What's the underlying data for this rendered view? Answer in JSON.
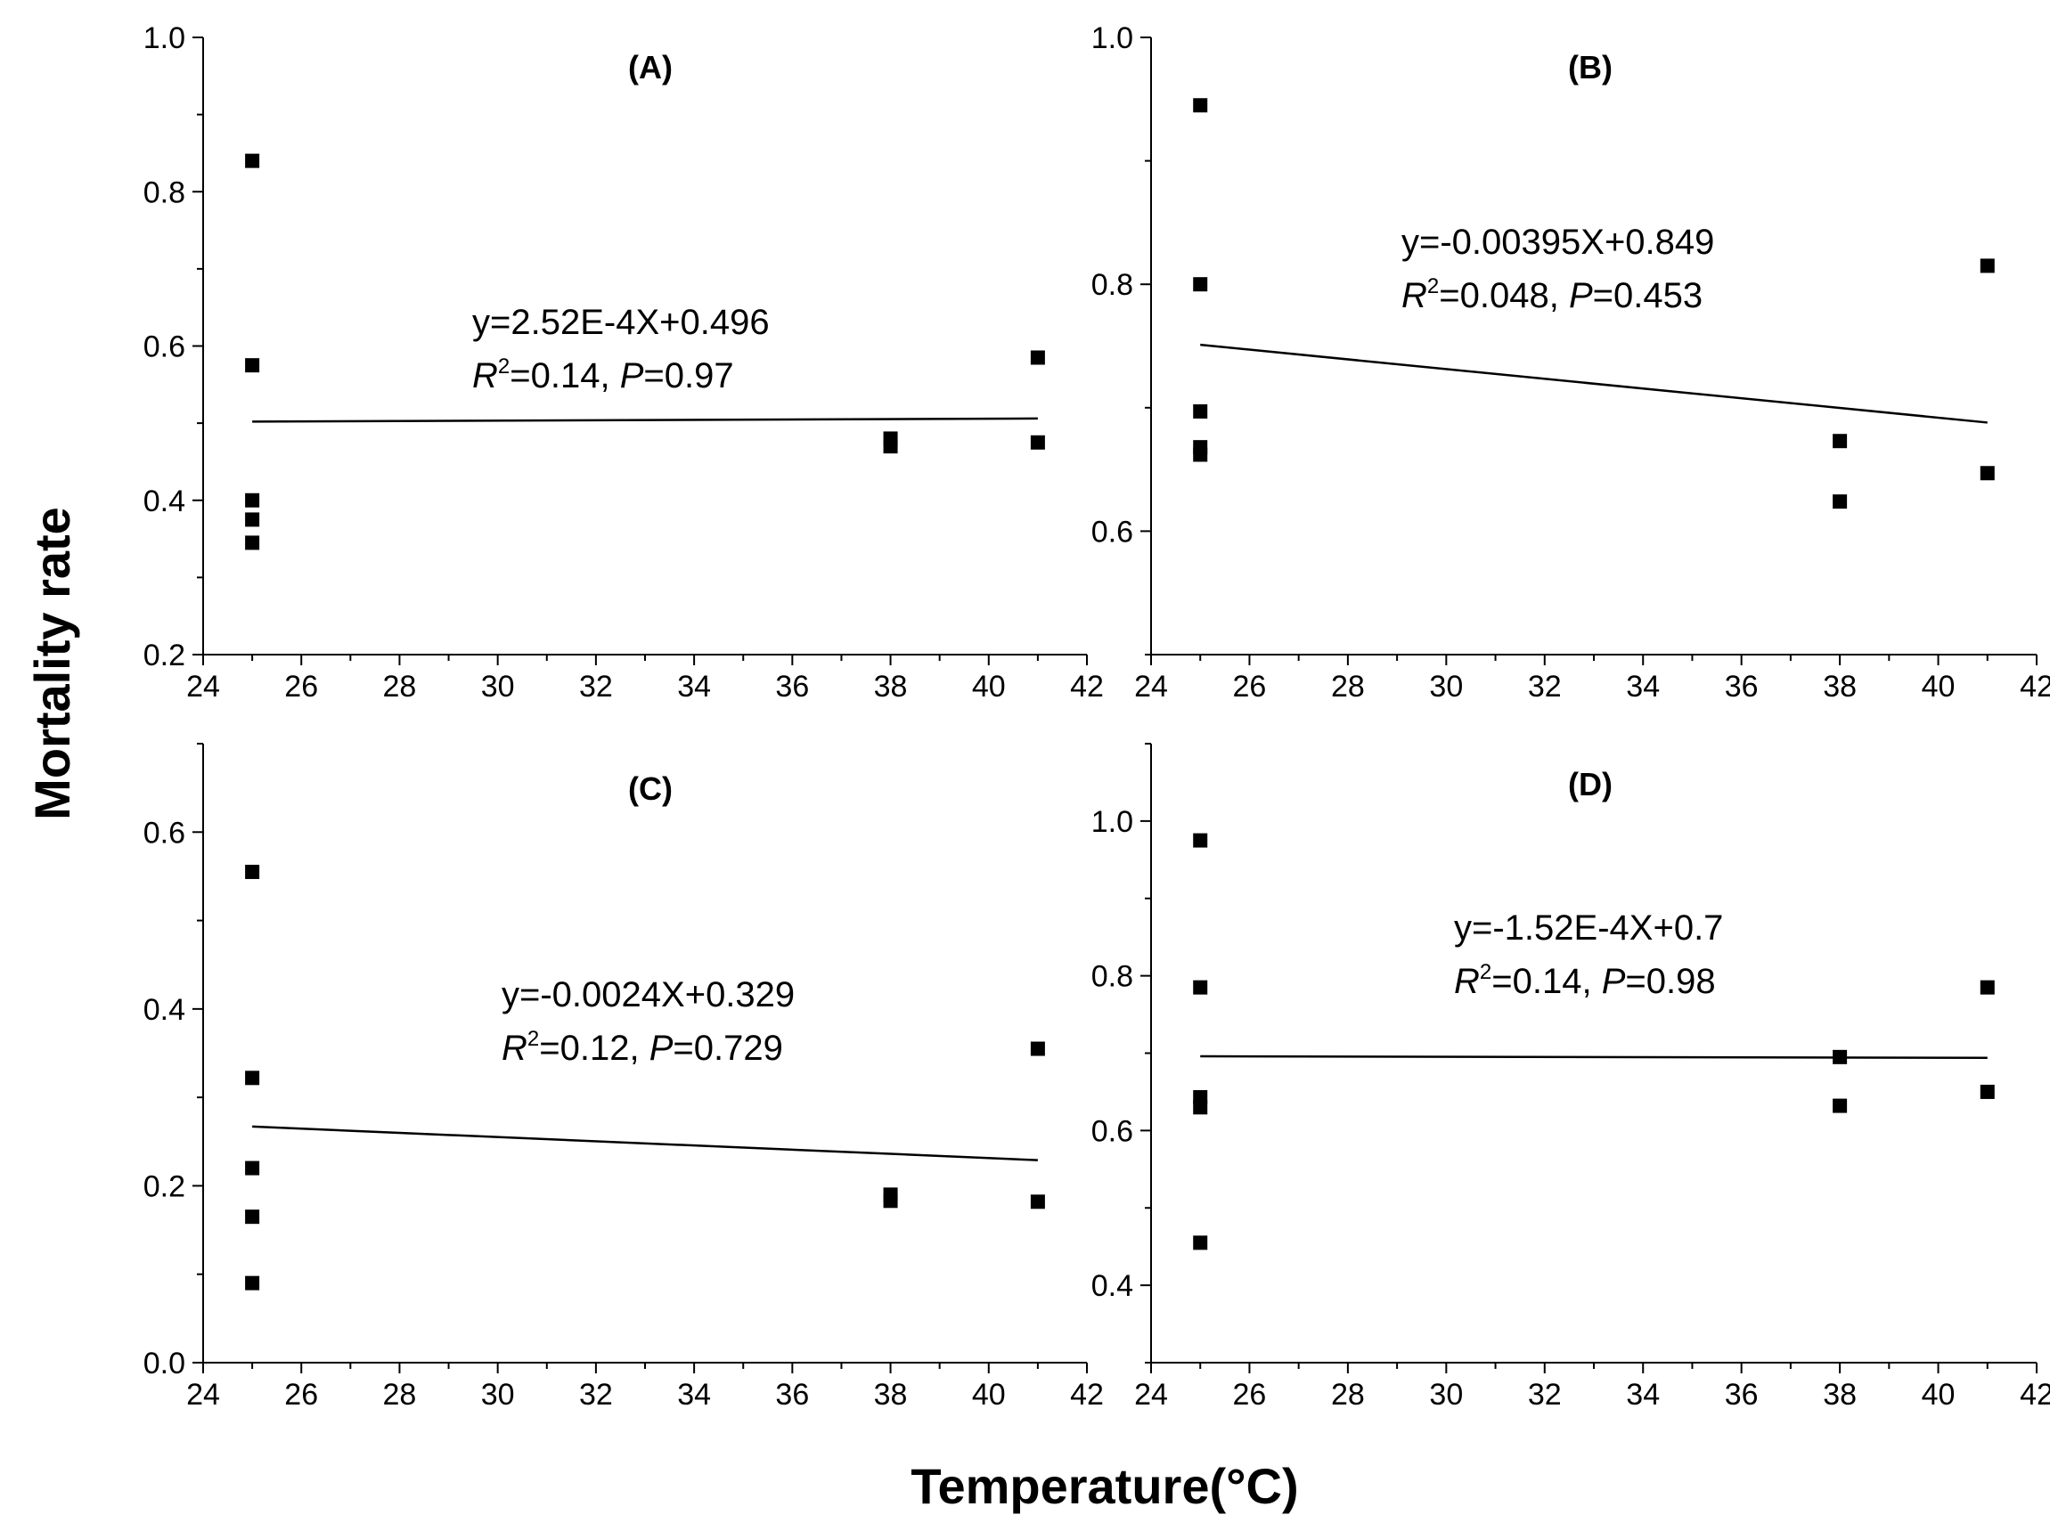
{
  "figure": {
    "ylabel": "Mortality rate",
    "xlabel": "Temperature(°C)"
  },
  "chart_data": [
    {
      "type": "scatter",
      "title": "(A)",
      "xlabel": "Temperature(°C)",
      "ylabel": "Mortality rate",
      "xlim": [
        24,
        42
      ],
      "ylim": [
        0.2,
        1.0
      ],
      "xticks": [
        24,
        26,
        28,
        30,
        32,
        34,
        36,
        38,
        40,
        42
      ],
      "yticks": [
        0.2,
        0.4,
        0.6,
        0.8,
        1.0
      ],
      "ytick_labels": [
        "0.2",
        "0.4",
        "0.6",
        "0.8",
        "1.0"
      ],
      "points": [
        {
          "x": 25,
          "y": 0.84
        },
        {
          "x": 25,
          "y": 0.575
        },
        {
          "x": 25,
          "y": 0.4
        },
        {
          "x": 25,
          "y": 0.375
        },
        {
          "x": 25,
          "y": 0.345
        },
        {
          "x": 38,
          "y": 0.48
        },
        {
          "x": 38,
          "y": 0.47
        },
        {
          "x": 41,
          "y": 0.585
        },
        {
          "x": 41,
          "y": 0.475
        }
      ],
      "fit": {
        "x0": 25,
        "y0": 0.502,
        "x1": 41,
        "y1": 0.506
      },
      "equation": "y=2.52E-4X+0.496",
      "stats": {
        "r2_label": "R",
        "r2_sup": "2",
        "r2_value": "=0.14, ",
        "p_label": "P",
        "p_value": "=0.97"
      }
    },
    {
      "type": "scatter",
      "title": "(B)",
      "xlabel": "Temperature(°C)",
      "ylabel": "Mortality rate",
      "xlim": [
        24,
        42
      ],
      "ylim": [
        0.5,
        1.0
      ],
      "xticks": [
        24,
        26,
        28,
        30,
        32,
        34,
        36,
        38,
        40,
        42
      ],
      "yticks": [
        0.6,
        0.8,
        1.0
      ],
      "ytick_labels": [
        "0.6",
        "0.8",
        "1.0"
      ],
      "minor_yticks": [
        0.5,
        0.7,
        0.9
      ],
      "points": [
        {
          "x": 25,
          "y": 0.945
        },
        {
          "x": 25,
          "y": 0.8
        },
        {
          "x": 25,
          "y": 0.697
        },
        {
          "x": 25,
          "y": 0.668
        },
        {
          "x": 25,
          "y": 0.662
        },
        {
          "x": 38,
          "y": 0.673
        },
        {
          "x": 38,
          "y": 0.624
        },
        {
          "x": 41,
          "y": 0.815
        },
        {
          "x": 41,
          "y": 0.647
        }
      ],
      "fit": {
        "x0": 25,
        "y0": 0.751,
        "x1": 41,
        "y1": 0.688
      },
      "equation": "y=-0.00395X+0.849",
      "stats": {
        "r2_label": "R",
        "r2_sup": "2",
        "r2_value": "=0.048, ",
        "p_label": "P",
        "p_value": "=0.453"
      }
    },
    {
      "type": "scatter",
      "title": "(C)",
      "xlabel": "Temperature(°C)",
      "ylabel": "Mortality rate",
      "xlim": [
        24,
        42
      ],
      "ylim": [
        0.0,
        0.7
      ],
      "xticks": [
        24,
        26,
        28,
        30,
        32,
        34,
        36,
        38,
        40,
        42
      ],
      "yticks": [
        0.0,
        0.2,
        0.4,
        0.6
      ],
      "ytick_labels": [
        "0.0",
        "0.2",
        "0.4",
        "0.6"
      ],
      "minor_yticks": [
        0.1,
        0.3,
        0.5,
        0.7
      ],
      "points": [
        {
          "x": 25,
          "y": 0.555
        },
        {
          "x": 25,
          "y": 0.322
        },
        {
          "x": 25,
          "y": 0.22
        },
        {
          "x": 25,
          "y": 0.165
        },
        {
          "x": 25,
          "y": 0.09
        },
        {
          "x": 38,
          "y": 0.19
        },
        {
          "x": 38,
          "y": 0.183
        },
        {
          "x": 41,
          "y": 0.355
        },
        {
          "x": 41,
          "y": 0.182
        }
      ],
      "fit": {
        "x0": 25,
        "y0": 0.267,
        "x1": 41,
        "y1": 0.229
      },
      "equation": "y=-0.0024X+0.329",
      "stats": {
        "r2_label": "R",
        "r2_sup": "2",
        "r2_value": "=0.12, ",
        "p_label": "P",
        "p_value": "=0.729"
      }
    },
    {
      "type": "scatter",
      "title": "(D)",
      "xlabel": "Temperature(°C)",
      "ylabel": "Mortality rate",
      "xlim": [
        24,
        42
      ],
      "ylim": [
        0.3,
        1.1
      ],
      "xticks": [
        24,
        26,
        28,
        30,
        32,
        34,
        36,
        38,
        40,
        42
      ],
      "yticks": [
        0.4,
        0.6,
        0.8,
        1.0
      ],
      "ytick_labels": [
        "0.4",
        "0.6",
        "0.8",
        "1.0"
      ],
      "minor_yticks": [
        0.3,
        0.5,
        0.7,
        0.9,
        1.1
      ],
      "points": [
        {
          "x": 25,
          "y": 0.975
        },
        {
          "x": 25,
          "y": 0.785
        },
        {
          "x": 25,
          "y": 0.643
        },
        {
          "x": 25,
          "y": 0.63
        },
        {
          "x": 25,
          "y": 0.455
        },
        {
          "x": 38,
          "y": 0.695
        },
        {
          "x": 38,
          "y": 0.632
        },
        {
          "x": 41,
          "y": 0.785
        },
        {
          "x": 41,
          "y": 0.65
        }
      ],
      "fit": {
        "x0": 25,
        "y0": 0.696,
        "x1": 41,
        "y1": 0.694
      },
      "equation": "y=-1.52E-4X+0.7",
      "stats": {
        "r2_label": "R",
        "r2_sup": "2",
        "r2_value": "=0.14, ",
        "p_label": "P",
        "p_value": "=0.98"
      }
    }
  ]
}
